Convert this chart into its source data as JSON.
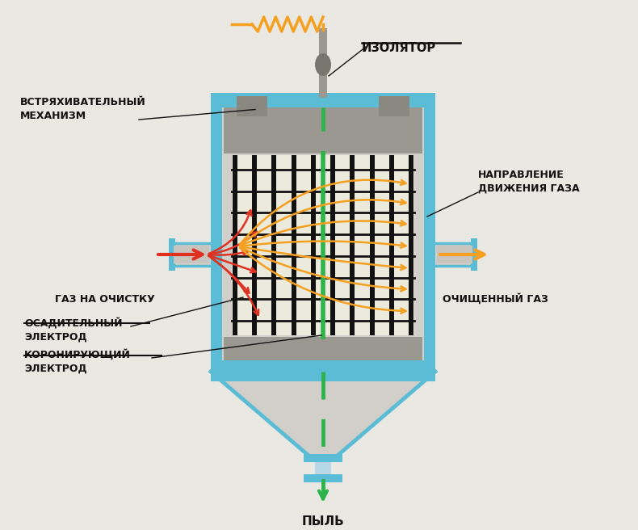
{
  "bg_color": "#eae8e2",
  "blue": "#5bbcd6",
  "gray_body": "#d2cfca",
  "gray_inner": "#d5d2cb",
  "gray_dark": "#9a9890",
  "green": "#2db34a",
  "orange": "#f5a020",
  "red": "#e03020",
  "black": "#111111",
  "dark_rod": "#888880",
  "grid_bg": "#eceadc",
  "block_gray": "#888880",
  "label_vstryakh": "ВСТРЯХИВАТЕЛЬНЫЙ\nМЕХАНИЗМ",
  "label_izolyator": "ИЗОЛЯТОР",
  "label_napravlenie": "НАПРАВЛЕНИЕ\nДВИЖЕНИЯ ГАЗА",
  "label_gaz_ochist": "ГАЗ НА ОЧИСТКУ",
  "label_ochish_gaz": "ОЧИЩЕННЫЙ ГАЗ",
  "label_osaditelny": "ОСАДИТЕЛЬНЫЙ\nЭЛЕКТРОД",
  "label_koro": "КОРОНИРУЮЩИЙ\nЭЛЕКТРОД",
  "label_pyl": "ПЫЛЬ"
}
